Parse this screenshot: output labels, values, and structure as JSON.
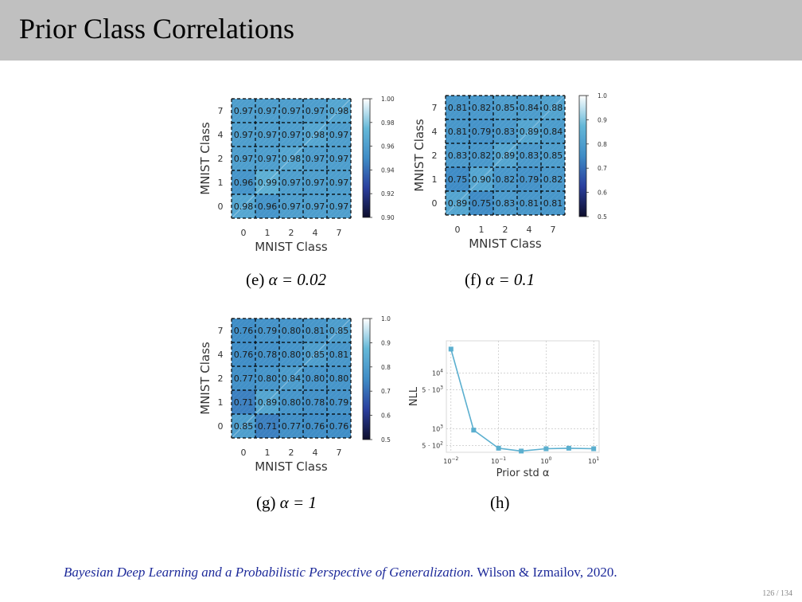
{
  "slide": {
    "title": "Prior Class Correlations",
    "footer_title": "Bayesian Deep Learning and a Probabilistic Perspective of Generalization.",
    "footer_authors": " Wilson & Izmailov, 2020.",
    "page_current": "126",
    "page_total": "134"
  },
  "captions": {
    "e": {
      "prefix": "(e)",
      "math": "α = 0.02"
    },
    "f": {
      "prefix": "(f)",
      "math": "α = 0.1"
    },
    "g": {
      "prefix": "(g)",
      "math": "α = 1"
    },
    "h": {
      "prefix": "(h)",
      "math": ""
    }
  },
  "chart_data": [
    {
      "type": "heatmap",
      "id": "e",
      "xlabel": "MNIST Class",
      "ylabel": "MNIST Class",
      "x_categories": [
        "0",
        "1",
        "2",
        "4",
        "7"
      ],
      "y_categories_top_to_bottom": [
        "7",
        "4",
        "2",
        "1",
        "0"
      ],
      "values": [
        [
          0.97,
          0.97,
          0.97,
          0.97,
          0.98
        ],
        [
          0.97,
          0.97,
          0.97,
          0.98,
          0.97
        ],
        [
          0.97,
          0.97,
          0.98,
          0.97,
          0.97
        ],
        [
          0.96,
          0.99,
          0.97,
          0.97,
          0.97
        ],
        [
          0.98,
          0.96,
          0.97,
          0.97,
          0.97
        ]
      ],
      "labels": [
        [
          "0.97",
          "0.97",
          "0.97",
          "0.97",
          "0.98"
        ],
        [
          "0.97",
          "0.97",
          "0.97",
          "0.98",
          "0.97"
        ],
        [
          "0.97",
          "0.97",
          "0.98",
          "0.97",
          "0.97"
        ],
        [
          "0.96",
          "0.99",
          "0.97",
          "0.97",
          "0.97"
        ],
        [
          "0.98",
          "0.96",
          "0.97",
          "0.97",
          "0.97"
        ]
      ],
      "colorbar_range": [
        0.9,
        1.0
      ],
      "colorbar_ticks": [
        "1.00",
        "0.98",
        "0.96",
        "0.94",
        "0.92",
        "0.90"
      ],
      "colormap": [
        "#0d0d2b",
        "#2a3f9e",
        "#3f8cc6",
        "#64b8d8",
        "#ffffff"
      ]
    },
    {
      "type": "heatmap",
      "id": "f",
      "xlabel": "MNIST Class",
      "ylabel": "MNIST Class",
      "x_categories": [
        "0",
        "1",
        "2",
        "4",
        "7"
      ],
      "y_categories_top_to_bottom": [
        "7",
        "4",
        "2",
        "1",
        "0"
      ],
      "values": [
        [
          0.81,
          0.82,
          0.85,
          0.84,
          0.88
        ],
        [
          0.81,
          0.79,
          0.83,
          0.89,
          0.84
        ],
        [
          0.83,
          0.82,
          0.89,
          0.83,
          0.85
        ],
        [
          0.75,
          0.9,
          0.82,
          0.79,
          0.82
        ],
        [
          0.89,
          0.75,
          0.83,
          0.81,
          0.81
        ]
      ],
      "labels": [
        [
          "0.81",
          "0.82",
          "0.85",
          "0.84",
          "0.88"
        ],
        [
          "0.81",
          "0.79",
          "0.83",
          "0.89",
          "0.84"
        ],
        [
          "0.83",
          "0.82",
          "0.89",
          "0.83",
          "0.85"
        ],
        [
          "0.75",
          "0.90",
          "0.82",
          "0.79",
          "0.82"
        ],
        [
          "0.89",
          "0.75",
          "0.83",
          "0.81",
          "0.81"
        ]
      ],
      "colorbar_range": [
        0.5,
        1.0
      ],
      "colorbar_ticks": [
        "1.0",
        "0.9",
        "0.8",
        "0.7",
        "0.6",
        "0.5"
      ],
      "colormap": [
        "#0d0d2b",
        "#2a3f9e",
        "#3f8cc6",
        "#64b8d8",
        "#ffffff"
      ]
    },
    {
      "type": "heatmap",
      "id": "g",
      "xlabel": "MNIST Class",
      "ylabel": "MNIST Class",
      "x_categories": [
        "0",
        "1",
        "2",
        "4",
        "7"
      ],
      "y_categories_top_to_bottom": [
        "7",
        "4",
        "2",
        "1",
        "0"
      ],
      "values": [
        [
          0.76,
          0.79,
          0.8,
          0.81,
          0.85
        ],
        [
          0.76,
          0.78,
          0.8,
          0.85,
          0.81
        ],
        [
          0.77,
          0.8,
          0.84,
          0.8,
          0.8
        ],
        [
          0.71,
          0.89,
          0.8,
          0.78,
          0.79
        ],
        [
          0.85,
          0.71,
          0.77,
          0.76,
          0.76
        ]
      ],
      "labels": [
        [
          "0.76",
          "0.79",
          "0.80",
          "0.81",
          "0.85"
        ],
        [
          "0.76",
          "0.78",
          "0.80",
          "0.85",
          "0.81"
        ],
        [
          "0.77",
          "0.80",
          "0.84",
          "0.80",
          "0.80"
        ],
        [
          "0.71",
          "0.89",
          "0.80",
          "0.78",
          "0.79"
        ],
        [
          "0.85",
          "0.71",
          "0.77",
          "0.76",
          "0.76"
        ]
      ],
      "colorbar_range": [
        0.5,
        1.0
      ],
      "colorbar_ticks": [
        "1.0",
        "0.9",
        "0.8",
        "0.7",
        "0.6",
        "0.5"
      ],
      "colormap": [
        "#0d0d2b",
        "#2a3f9e",
        "#3f8cc6",
        "#64b8d8",
        "#ffffff"
      ]
    },
    {
      "type": "line",
      "id": "h",
      "xlabel": "Prior std α",
      "ylabel": "NLL",
      "x_scale": "log",
      "y_scale": "log",
      "xlim": [
        0.008,
        13
      ],
      "ylim": [
        380,
        38000
      ],
      "x_ticks": [
        {
          "value": 0.01,
          "base": "10",
          "exp": "−2"
        },
        {
          "value": 0.1,
          "base": "10",
          "exp": "−1"
        },
        {
          "value": 1,
          "base": "10",
          "exp": "0"
        },
        {
          "value": 10,
          "base": "10",
          "exp": "1"
        }
      ],
      "y_ticks": [
        {
          "value": 500,
          "base": "5 · 10",
          "exp": "2"
        },
        {
          "value": 1000,
          "base": "10",
          "exp": "3"
        },
        {
          "value": 5000,
          "base": "5 · 10",
          "exp": "3"
        },
        {
          "value": 10000,
          "base": "10",
          "exp": "4"
        }
      ],
      "grid": true,
      "series": [
        {
          "color": "#5bafcf",
          "x": [
            0.01,
            0.03,
            0.1,
            0.3,
            1,
            3,
            10
          ],
          "y": [
            27000,
            950,
            450,
            400,
            440,
            450,
            440
          ]
        }
      ]
    }
  ]
}
